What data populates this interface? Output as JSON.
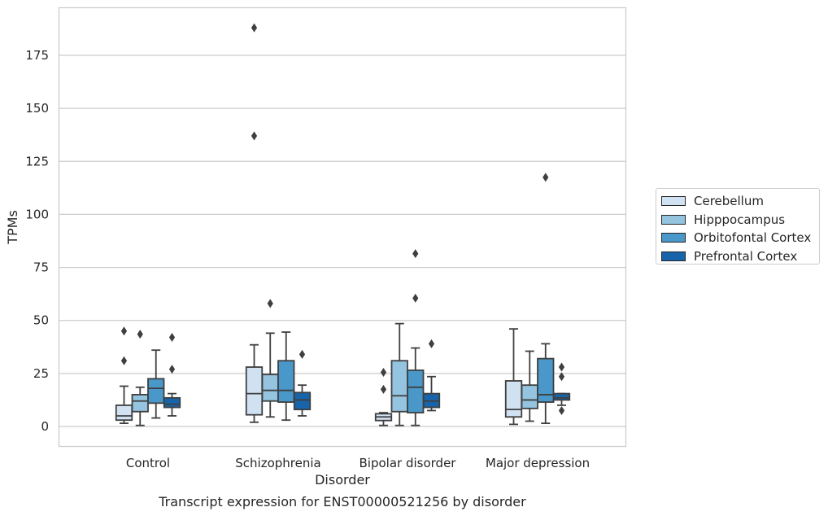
{
  "chart_data": {
    "type": "box",
    "title": "",
    "caption": "Transcript expression for ENST00000521256 by disorder",
    "xlabel": "Disorder",
    "ylabel": "TPMs",
    "ylim": [
      -9,
      197
    ],
    "yticks": [
      0,
      25,
      50,
      75,
      100,
      125,
      150,
      175
    ],
    "grid": "horizontal",
    "legend_position": "right",
    "categories": [
      "Control",
      "Schizophrenia",
      "Bipolar disorder",
      "Major depression"
    ],
    "series": [
      {
        "name": "Cerebellum",
        "color": "#d0e1f2",
        "boxes": [
          {
            "whislo": 1.5,
            "q1": 3,
            "med": 5,
            "q3": 10,
            "whishi": 19,
            "fliers": [
              45,
              31
            ]
          },
          {
            "whislo": 2,
            "q1": 5.5,
            "med": 15.5,
            "q3": 28,
            "whishi": 38.5,
            "fliers": [
              188,
              137
            ]
          },
          {
            "whislo": 0.5,
            "q1": 2.8,
            "med": 4.5,
            "q3": 6,
            "whishi": 6.5,
            "fliers": [
              25.5,
              17.5
            ]
          },
          {
            "whislo": 1,
            "q1": 4.5,
            "med": 8,
            "q3": 21.5,
            "whishi": 46,
            "fliers": []
          }
        ]
      },
      {
        "name": "Hipppocampus",
        "color": "#94c4df",
        "boxes": [
          {
            "whislo": 0.5,
            "q1": 7,
            "med": 12,
            "q3": 15,
            "whishi": 18.5,
            "fliers": [
              43.5
            ]
          },
          {
            "whislo": 4.5,
            "q1": 12,
            "med": 17,
            "q3": 24.5,
            "whishi": 44,
            "fliers": [
              58
            ]
          },
          {
            "whislo": 0.5,
            "q1": 7,
            "med": 14.5,
            "q3": 31,
            "whishi": 48.5,
            "fliers": []
          },
          {
            "whislo": 2.5,
            "q1": 8.5,
            "med": 12.5,
            "q3": 19.5,
            "whishi": 35.5,
            "fliers": []
          }
        ]
      },
      {
        "name": "Orbitofontal Cortex",
        "color": "#4a98c9",
        "boxes": [
          {
            "whislo": 4,
            "q1": 11,
            "med": 18,
            "q3": 22.5,
            "whishi": 36,
            "fliers": []
          },
          {
            "whislo": 3,
            "q1": 11.5,
            "med": 17,
            "q3": 31,
            "whishi": 44.5,
            "fliers": []
          },
          {
            "whislo": 0.5,
            "q1": 6.5,
            "med": 18.5,
            "q3": 26.5,
            "whishi": 37,
            "fliers": [
              81.5,
              60.5
            ]
          },
          {
            "whislo": 1.5,
            "q1": 11.5,
            "med": 15,
            "q3": 32,
            "whishi": 39,
            "fliers": [
              117.5
            ]
          }
        ]
      },
      {
        "name": "Prefrontal Cortex",
        "color": "#1764ab",
        "boxes": [
          {
            "whislo": 5,
            "q1": 9,
            "med": 10.5,
            "q3": 13.5,
            "whishi": 15.5,
            "fliers": [
              42,
              27
            ]
          },
          {
            "whislo": 5,
            "q1": 8,
            "med": 12.5,
            "q3": 16,
            "whishi": 19.5,
            "fliers": [
              34
            ]
          },
          {
            "whislo": 7.5,
            "q1": 9,
            "med": 12,
            "q3": 15.5,
            "whishi": 23.5,
            "fliers": [
              39
            ]
          },
          {
            "whislo": 10,
            "q1": 12.5,
            "med": 13.5,
            "q3": 15.5,
            "whishi": 15.5,
            "fliers": [
              28,
              23.5,
              7.5
            ]
          }
        ]
      }
    ]
  }
}
